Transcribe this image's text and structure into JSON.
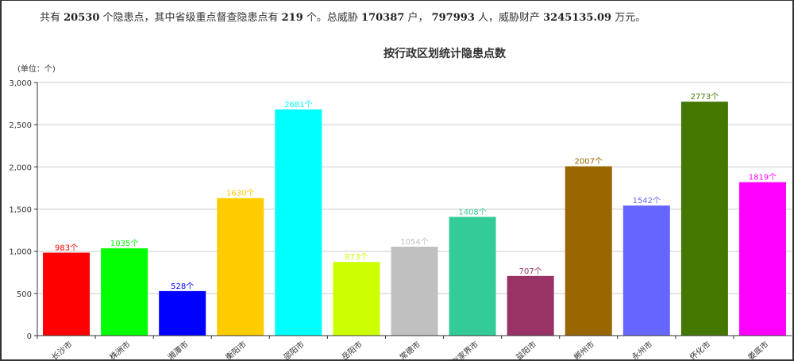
{
  "summary": {
    "p1": "共有 ",
    "total": "20530",
    "p2": " 个隐患点，其中省级重点督查隐患点有 ",
    "key": "219",
    "p3": " 个。总威胁 ",
    "households": "170387",
    "p4": " 户， ",
    "people": "797993",
    "p5": " 人，威胁财产 ",
    "property": "3245135.09",
    "p6": " 万元。"
  },
  "chart_data": {
    "type": "bar",
    "title": "按行政区划统计隐患点数",
    "unit_label": "(单位：个)",
    "ylim": [
      0,
      3000
    ],
    "yticks": [
      "0",
      "500",
      "1,000",
      "1,500",
      "2,000",
      "2,500",
      "3,000"
    ],
    "ytick_values": [
      0,
      500,
      1000,
      1500,
      2000,
      2500,
      3000
    ],
    "grid": true,
    "categories": [
      "长沙市",
      "株洲市",
      "湘潭市",
      "衡阳市",
      "邵阳市",
      "岳阳市",
      "常德市",
      "张家界市",
      "益阳市",
      "郴州市",
      "永州市",
      "怀化市",
      "娄底市"
    ],
    "values": [
      983,
      1035,
      528,
      1630,
      2681,
      873,
      1054,
      1408,
      707,
      2007,
      1542,
      2773,
      1819
    ],
    "data_label_suffix": "个",
    "colors": [
      "#ff0000",
      "#00ff00",
      "#0000ff",
      "#ffcc00",
      "#00ffff",
      "#ccff00",
      "#c0c0c0",
      "#33cc99",
      "#993366",
      "#996600",
      "#6666ff",
      "#447700",
      "#ff00ff"
    ]
  }
}
